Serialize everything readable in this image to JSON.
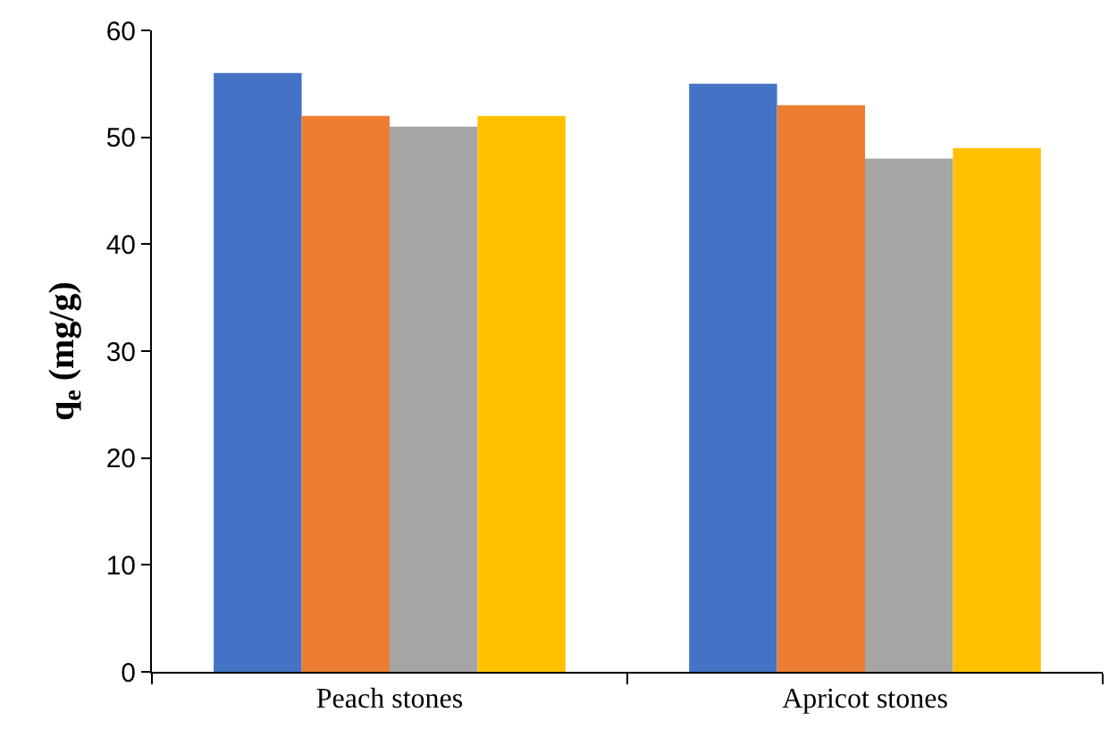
{
  "chart_data": {
    "type": "bar",
    "ylabel": "q$_{e}$ (mg/g)",
    "categories": [
      "Peach stones",
      "Apricot stones"
    ],
    "series": [
      {
        "color": "#4472c4",
        "values": [
          56,
          55
        ]
      },
      {
        "color": "#ed7d31",
        "values": [
          52,
          53
        ]
      },
      {
        "color": "#a5a5a5",
        "values": [
          51,
          48
        ]
      },
      {
        "color": "#ffc000",
        "values": [
          52,
          49
        ]
      }
    ],
    "ylim": [
      0,
      60
    ],
    "yticks": [
      0,
      10,
      20,
      30,
      40,
      50,
      60
    ],
    "grid": false
  }
}
